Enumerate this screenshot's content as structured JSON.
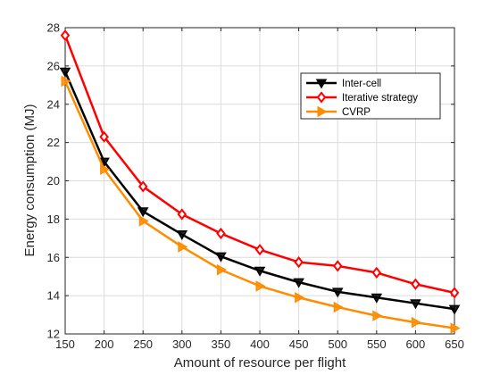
{
  "chart_data": {
    "type": "line",
    "title": "",
    "xlabel": "Amount of resource per flight",
    "ylabel": "Energy consumption (MJ)",
    "x": [
      150,
      200,
      250,
      300,
      350,
      400,
      450,
      500,
      550,
      600,
      650
    ],
    "xlim": [
      150,
      650
    ],
    "ylim": [
      12,
      28
    ],
    "xticks": [
      150,
      200,
      250,
      300,
      350,
      400,
      450,
      500,
      550,
      600,
      650
    ],
    "yticks": [
      12,
      14,
      16,
      18,
      20,
      22,
      24,
      26,
      28
    ],
    "grid": true,
    "legend_position": "upper-right",
    "series": [
      {
        "name": "Inter-cell",
        "color": "#000000",
        "marker": "triangle-down",
        "values": [
          25.7,
          21.0,
          18.4,
          17.2,
          16.05,
          15.3,
          14.7,
          14.2,
          13.9,
          13.6,
          13.3
        ]
      },
      {
        "name": "Iterative strategy",
        "color": "#ff0000",
        "marker": "diamond",
        "values": [
          27.6,
          22.3,
          19.7,
          18.25,
          17.25,
          16.4,
          15.75,
          15.55,
          15.2,
          14.6,
          14.15
        ]
      },
      {
        "name": "CVRP",
        "color": "#ff8c00",
        "marker": "triangle-right",
        "values": [
          25.2,
          20.6,
          17.9,
          16.55,
          15.35,
          14.5,
          13.9,
          13.4,
          12.95,
          12.6,
          12.3
        ]
      }
    ]
  }
}
